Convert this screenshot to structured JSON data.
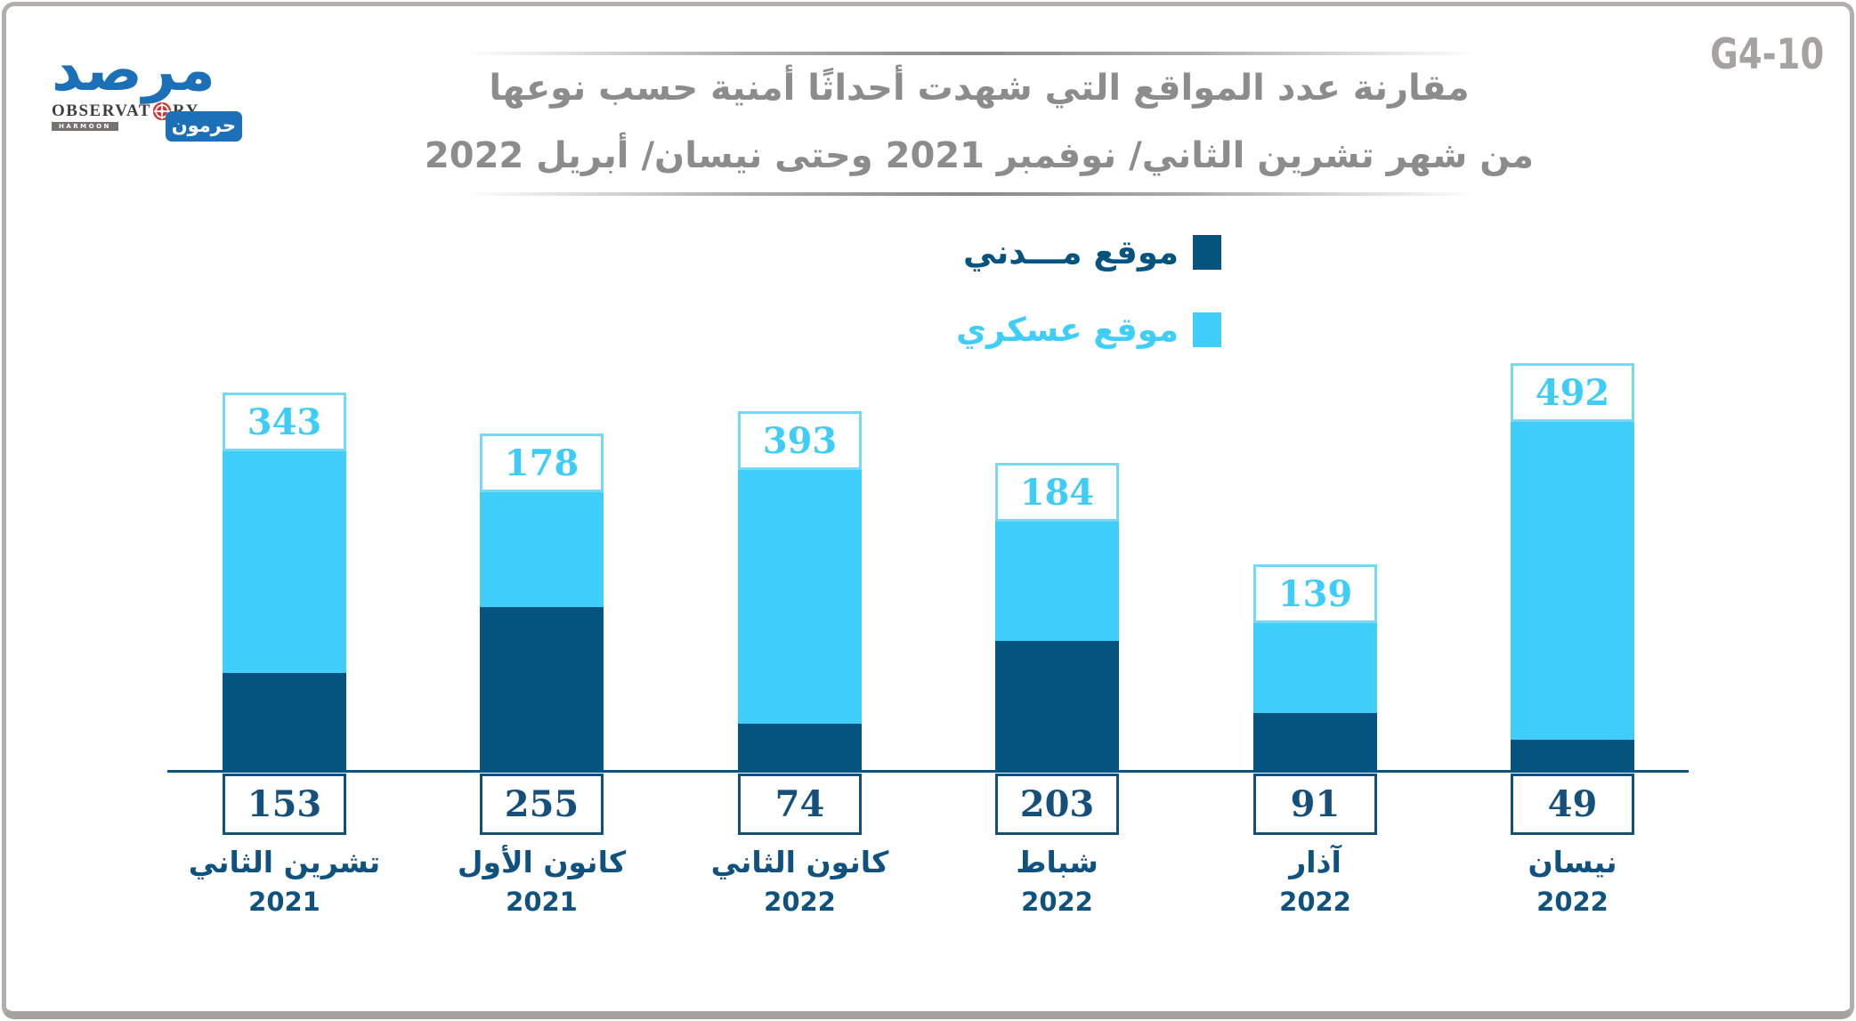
{
  "figure_code": "G4-10",
  "logo": {
    "arabic_name": "مرصد",
    "observatory_left": "OBSERVAT",
    "observatory_right": "RY",
    "strip_text": "HARMOON",
    "harmoon_arabic": "حرمون",
    "blue": "#1C70B7",
    "red": "#D43431"
  },
  "title": {
    "line1": "مقارنة عدد المواقع التي شهدت أحداثًا أمنية حسب نوعها",
    "line2": "من شهر تشرين الثاني/ نوفمبر 2021 وحتى  نيسان/ أبريل 2022",
    "color": "#8C8C8C"
  },
  "legend": [
    {
      "label": "موقع مـــدني",
      "role": "civilian",
      "color": "#05537F"
    },
    {
      "label": "موقع عسكري",
      "role": "military",
      "color": "#3FCEF9"
    }
  ],
  "chart_data": {
    "type": "bar",
    "stacked": true,
    "title": "مقارنة عدد المواقع التي شهدت أحداثًا أمنية حسب نوعها من شهر تشرين الثاني/ نوفمبر 2021 وحتى نيسان/ أبريل 2022",
    "categories": [
      {
        "month": "تشرين الثاني",
        "year": "2021"
      },
      {
        "month": "كانون الأول",
        "year": "2021"
      },
      {
        "month": "كانون الثاني",
        "year": "2022"
      },
      {
        "month": "شباط",
        "year": "2022"
      },
      {
        "month": "آذار",
        "year": "2022"
      },
      {
        "month": "نيسان",
        "year": "2022"
      }
    ],
    "series": [
      {
        "name": "موقع مـــدني",
        "role": "civilian",
        "color": "#05537F",
        "values": [
          153,
          255,
          74,
          203,
          91,
          49
        ]
      },
      {
        "name": "موقع عسكري",
        "role": "military",
        "color": "#3FCEF9",
        "values": [
          343,
          178,
          393,
          184,
          139,
          492
        ]
      }
    ],
    "totals": [
      496,
      433,
      467,
      387,
      230,
      541
    ],
    "value_labels": {
      "above_bar": {
        "series": "موقع عسكري",
        "values": [
          343,
          178,
          393,
          184,
          139,
          492
        ],
        "color": "#3ECDF8"
      },
      "below_axis": {
        "series": "موقع مـــدني",
        "values": [
          153,
          255,
          74,
          203,
          91,
          49
        ],
        "color": "#14507B"
      }
    },
    "ylim": [
      0,
      560
    ],
    "grid": false,
    "legend_position": "top-right",
    "axis_color": "#0F537E"
  }
}
